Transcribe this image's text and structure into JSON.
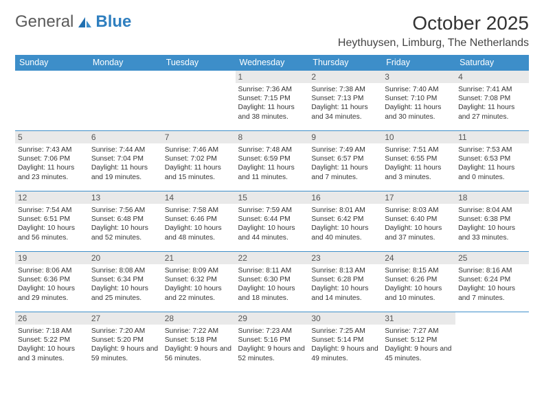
{
  "brand": {
    "part1": "General",
    "part2": "Blue"
  },
  "title": "October 2025",
  "location": "Heythuysen, Limburg, The Netherlands",
  "colors": {
    "header_bg": "#3d8ec9",
    "header_text": "#ffffff",
    "cell_border": "#3d8ec9",
    "daynum_bg": "#e9e9e9",
    "text": "#333333"
  },
  "dayNames": [
    "Sunday",
    "Monday",
    "Tuesday",
    "Wednesday",
    "Thursday",
    "Friday",
    "Saturday"
  ],
  "weeks": [
    [
      null,
      null,
      null,
      {
        "n": "1",
        "sr": "7:36 AM",
        "ss": "7:15 PM",
        "dl": "11 hours and 38 minutes."
      },
      {
        "n": "2",
        "sr": "7:38 AM",
        "ss": "7:13 PM",
        "dl": "11 hours and 34 minutes."
      },
      {
        "n": "3",
        "sr": "7:40 AM",
        "ss": "7:10 PM",
        "dl": "11 hours and 30 minutes."
      },
      {
        "n": "4",
        "sr": "7:41 AM",
        "ss": "7:08 PM",
        "dl": "11 hours and 27 minutes."
      }
    ],
    [
      {
        "n": "5",
        "sr": "7:43 AM",
        "ss": "7:06 PM",
        "dl": "11 hours and 23 minutes."
      },
      {
        "n": "6",
        "sr": "7:44 AM",
        "ss": "7:04 PM",
        "dl": "11 hours and 19 minutes."
      },
      {
        "n": "7",
        "sr": "7:46 AM",
        "ss": "7:02 PM",
        "dl": "11 hours and 15 minutes."
      },
      {
        "n": "8",
        "sr": "7:48 AM",
        "ss": "6:59 PM",
        "dl": "11 hours and 11 minutes."
      },
      {
        "n": "9",
        "sr": "7:49 AM",
        "ss": "6:57 PM",
        "dl": "11 hours and 7 minutes."
      },
      {
        "n": "10",
        "sr": "7:51 AM",
        "ss": "6:55 PM",
        "dl": "11 hours and 3 minutes."
      },
      {
        "n": "11",
        "sr": "7:53 AM",
        "ss": "6:53 PM",
        "dl": "11 hours and 0 minutes."
      }
    ],
    [
      {
        "n": "12",
        "sr": "7:54 AM",
        "ss": "6:51 PM",
        "dl": "10 hours and 56 minutes."
      },
      {
        "n": "13",
        "sr": "7:56 AM",
        "ss": "6:48 PM",
        "dl": "10 hours and 52 minutes."
      },
      {
        "n": "14",
        "sr": "7:58 AM",
        "ss": "6:46 PM",
        "dl": "10 hours and 48 minutes."
      },
      {
        "n": "15",
        "sr": "7:59 AM",
        "ss": "6:44 PM",
        "dl": "10 hours and 44 minutes."
      },
      {
        "n": "16",
        "sr": "8:01 AM",
        "ss": "6:42 PM",
        "dl": "10 hours and 40 minutes."
      },
      {
        "n": "17",
        "sr": "8:03 AM",
        "ss": "6:40 PM",
        "dl": "10 hours and 37 minutes."
      },
      {
        "n": "18",
        "sr": "8:04 AM",
        "ss": "6:38 PM",
        "dl": "10 hours and 33 minutes."
      }
    ],
    [
      {
        "n": "19",
        "sr": "8:06 AM",
        "ss": "6:36 PM",
        "dl": "10 hours and 29 minutes."
      },
      {
        "n": "20",
        "sr": "8:08 AM",
        "ss": "6:34 PM",
        "dl": "10 hours and 25 minutes."
      },
      {
        "n": "21",
        "sr": "8:09 AM",
        "ss": "6:32 PM",
        "dl": "10 hours and 22 minutes."
      },
      {
        "n": "22",
        "sr": "8:11 AM",
        "ss": "6:30 PM",
        "dl": "10 hours and 18 minutes."
      },
      {
        "n": "23",
        "sr": "8:13 AM",
        "ss": "6:28 PM",
        "dl": "10 hours and 14 minutes."
      },
      {
        "n": "24",
        "sr": "8:15 AM",
        "ss": "6:26 PM",
        "dl": "10 hours and 10 minutes."
      },
      {
        "n": "25",
        "sr": "8:16 AM",
        "ss": "6:24 PM",
        "dl": "10 hours and 7 minutes."
      }
    ],
    [
      {
        "n": "26",
        "sr": "7:18 AM",
        "ss": "5:22 PM",
        "dl": "10 hours and 3 minutes."
      },
      {
        "n": "27",
        "sr": "7:20 AM",
        "ss": "5:20 PM",
        "dl": "9 hours and 59 minutes."
      },
      {
        "n": "28",
        "sr": "7:22 AM",
        "ss": "5:18 PM",
        "dl": "9 hours and 56 minutes."
      },
      {
        "n": "29",
        "sr": "7:23 AM",
        "ss": "5:16 PM",
        "dl": "9 hours and 52 minutes."
      },
      {
        "n": "30",
        "sr": "7:25 AM",
        "ss": "5:14 PM",
        "dl": "9 hours and 49 minutes."
      },
      {
        "n": "31",
        "sr": "7:27 AM",
        "ss": "5:12 PM",
        "dl": "9 hours and 45 minutes."
      },
      null
    ]
  ],
  "labels": {
    "sunrise": "Sunrise: ",
    "sunset": "Sunset: ",
    "daylight": "Daylight: "
  }
}
